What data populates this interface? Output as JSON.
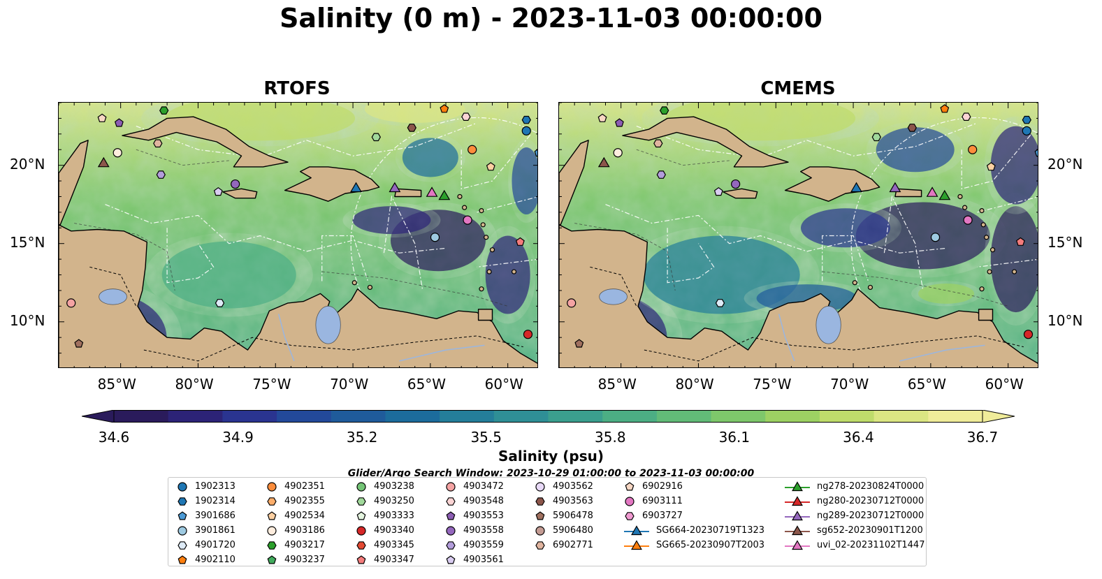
{
  "title": "Salinity (0 m) - 2023-11-03 00:00:00",
  "panels": [
    {
      "title": "RTOFS"
    },
    {
      "title": "CMEMS"
    }
  ],
  "colors": {
    "land": "#d2b48c",
    "colormap": [
      "#2a1b5b",
      "#2c2377",
      "#2a3490",
      "#23499a",
      "#1f5b9b",
      "#1c6c9c",
      "#247e9a",
      "#2f8f96",
      "#3b9f8e",
      "#4cae84",
      "#62bb78",
      "#7ec76b",
      "#9dd163",
      "#bfdc6b",
      "#dbe683",
      "#f0ec9a"
    ]
  },
  "chart_data": {
    "type": "heatmap",
    "variable": "Salinity (0 m)",
    "time": "2023-11-03 00:00:00",
    "colorbar": {
      "label": "Salinity (psu)",
      "min": 34.6,
      "max": 36.7,
      "ticks": [
        "34.6",
        "34.9",
        "35.2",
        "35.5",
        "35.8",
        "36.1",
        "36.4",
        "36.7"
      ],
      "extend": "both"
    },
    "lon_range": [
      -89,
      -58
    ],
    "lat_range": [
      7,
      24
    ],
    "lon_ticks": [
      "85°W",
      "80°W",
      "75°W",
      "70°W",
      "65°W",
      "60°W"
    ],
    "lat_ticks": [
      "20°N",
      "15°N",
      "10°N"
    ],
    "search_window": "Glider/Argo Search Window: 2023-10-29 01:00:00 to 2023-11-03 00:00:00",
    "legend_entries": [
      {
        "id": "1902313",
        "marker": "circle",
        "color": "#1f77b4"
      },
      {
        "id": "1902314",
        "marker": "hexagon",
        "color": "#1f77b4"
      },
      {
        "id": "3901686",
        "marker": "pentagon",
        "color": "#4c9bd6"
      },
      {
        "id": "3901861",
        "marker": "circle",
        "color": "#9ecae1"
      },
      {
        "id": "4901720",
        "marker": "hexagon",
        "color": "#deebf7"
      },
      {
        "id": "4902110",
        "marker": "pentagon",
        "color": "#ff7f0e"
      },
      {
        "id": "4902351",
        "marker": "circle",
        "color": "#fd8d3c"
      },
      {
        "id": "4902355",
        "marker": "hexagon",
        "color": "#fdae6b"
      },
      {
        "id": "4902534",
        "marker": "pentagon",
        "color": "#fdd0a2"
      },
      {
        "id": "4903186",
        "marker": "circle",
        "color": "#feedde"
      },
      {
        "id": "4903217",
        "marker": "hexagon",
        "color": "#2ca02c"
      },
      {
        "id": "4903237",
        "marker": "pentagon",
        "color": "#41ab5d"
      },
      {
        "id": "4903238",
        "marker": "circle",
        "color": "#74c476"
      },
      {
        "id": "4903250",
        "marker": "hexagon",
        "color": "#a1d99b"
      },
      {
        "id": "4903333",
        "marker": "pentagon",
        "color": "#e5f5e0"
      },
      {
        "id": "4903340",
        "marker": "circle",
        "color": "#d62728"
      },
      {
        "id": "4903345",
        "marker": "hexagon",
        "color": "#e34a33"
      },
      {
        "id": "4903347",
        "marker": "pentagon",
        "color": "#f47c7c"
      },
      {
        "id": "4903472",
        "marker": "circle",
        "color": "#f4a3a3"
      },
      {
        "id": "4903548",
        "marker": "hexagon",
        "color": "#fcd5d5"
      },
      {
        "id": "4903553",
        "marker": "pentagon",
        "color": "#8c5db3"
      },
      {
        "id": "4903558",
        "marker": "circle",
        "color": "#9467bd"
      },
      {
        "id": "4903559",
        "marker": "hexagon",
        "color": "#b39ddb"
      },
      {
        "id": "4903561",
        "marker": "pentagon",
        "color": "#d9ccf0"
      },
      {
        "id": "4903562",
        "marker": "circle",
        "color": "#e8d9f7"
      },
      {
        "id": "4903563",
        "marker": "hexagon",
        "color": "#8c564b"
      },
      {
        "id": "5906478",
        "marker": "pentagon",
        "color": "#a0705f"
      },
      {
        "id": "5906480",
        "marker": "circle",
        "color": "#c49c94"
      },
      {
        "id": "6902771",
        "marker": "hexagon",
        "color": "#e0b49f"
      },
      {
        "id": "6902916",
        "marker": "pentagon",
        "color": "#f7d7c4"
      },
      {
        "id": "6903111",
        "marker": "circle",
        "color": "#e377c2"
      },
      {
        "id": "6903727",
        "marker": "hexagon",
        "color": "#f09ad1"
      },
      {
        "id": "SG664-20230719T1323",
        "marker": "triangle-line",
        "color": "#1f77b4"
      },
      {
        "id": "SG665-20230907T2003",
        "marker": "triangle-line",
        "color": "#ff7f0e"
      },
      {
        "id": "ng278-20230824T0000",
        "marker": "triangle-line",
        "color": "#2ca02c"
      },
      {
        "id": "ng280-20230712T0000",
        "marker": "triangle-line",
        "color": "#d62728"
      },
      {
        "id": "ng289-20230712T0000",
        "marker": "triangle-line",
        "color": "#9467bd"
      },
      {
        "id": "sg652-20230901T1200",
        "marker": "triangle-line",
        "color": "#8c564b"
      },
      {
        "id": "uvi_02-20231102T1447",
        "marker": "triangle-line",
        "color": "#e377c2"
      }
    ],
    "observations": [
      {
        "id": "1902313",
        "lon": -58.8,
        "lat": 22.2
      },
      {
        "id": "1902314",
        "lon": -58.8,
        "lat": 22.9
      },
      {
        "id": "3901686",
        "lon": -58.0,
        "lat": 20.8
      },
      {
        "id": "3901861",
        "lon": -64.7,
        "lat": 15.4
      },
      {
        "id": "4901720",
        "lon": -78.6,
        "lat": 11.2
      },
      {
        "id": "4902110",
        "lon": -64.1,
        "lat": 23.6
      },
      {
        "id": "4902534",
        "lon": -61.1,
        "lat": 19.9
      },
      {
        "id": "4903186",
        "lon": -85.2,
        "lat": 20.8
      },
      {
        "id": "4903217",
        "lon": -82.2,
        "lat": 23.5
      },
      {
        "id": "4903250",
        "lon": -68.5,
        "lat": 21.8
      },
      {
        "id": "4903340",
        "lon": -58.7,
        "lat": 9.2
      },
      {
        "id": "4903347",
        "lon": -59.2,
        "lat": 15.1
      },
      {
        "id": "4903472",
        "lon": -88.2,
        "lat": 11.2
      },
      {
        "id": "4903548",
        "lon": -62.7,
        "lat": 23.1
      },
      {
        "id": "4903553",
        "lon": -85.1,
        "lat": 22.7
      },
      {
        "id": "4903558",
        "lon": -77.6,
        "lat": 18.8
      },
      {
        "id": "4903559",
        "lon": -82.4,
        "lat": 19.4
      },
      {
        "id": "4903561",
        "lon": -78.7,
        "lat": 18.3
      },
      {
        "id": "4903563",
        "lon": -66.2,
        "lat": 22.4
      },
      {
        "id": "5906478",
        "lon": -87.7,
        "lat": 8.6
      },
      {
        "id": "6902771",
        "lon": -82.6,
        "lat": 21.4
      },
      {
        "id": "6902916",
        "lon": -86.2,
        "lat": 23.0
      },
      {
        "id": "6903111",
        "lon": -62.6,
        "lat": 16.5
      },
      {
        "id": "4902351",
        "lon": -62.3,
        "lat": 21.0
      },
      {
        "id": "SG664-20230719T1323",
        "lon": -69.8,
        "lat": 18.5
      },
      {
        "id": "ng278-20230824T0000",
        "lon": -64.1,
        "lat": 18.0
      },
      {
        "id": "ng289-20230712T0000",
        "lon": -67.3,
        "lat": 18.5
      },
      {
        "id": "sg652-20230901T1200",
        "lon": -86.1,
        "lat": 20.1
      },
      {
        "id": "uvi_02-20231102T1447",
        "lon": -64.9,
        "lat": 18.2
      }
    ]
  }
}
